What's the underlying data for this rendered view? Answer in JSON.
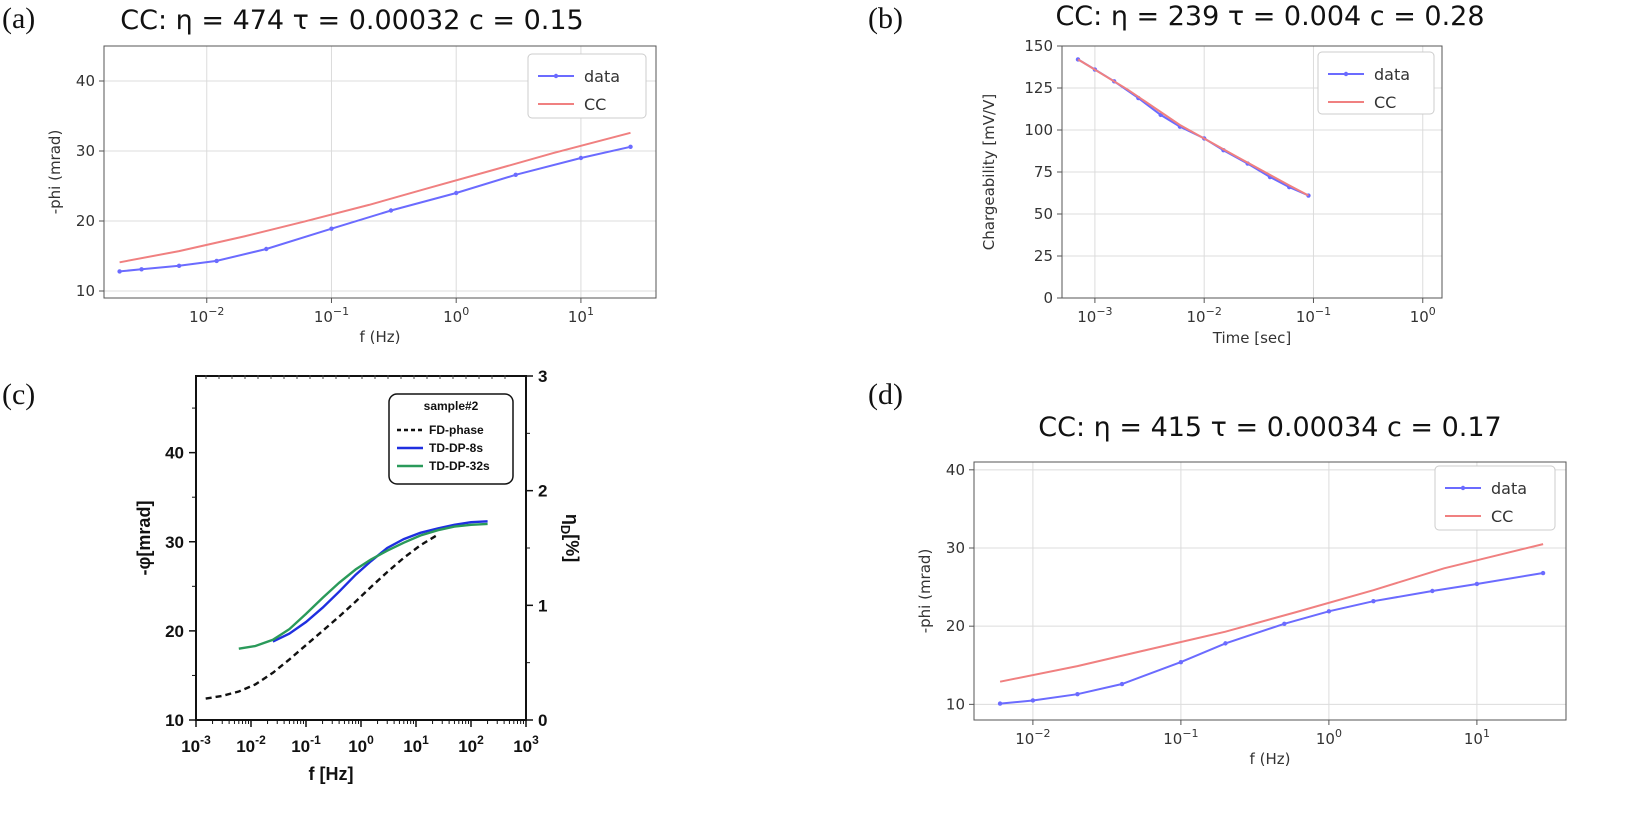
{
  "colors": {
    "data": "#6b6bff",
    "cc": "#f08080",
    "td8": "#1f2fe0",
    "td32": "#2a9a5a",
    "fd": "#111111"
  },
  "chart_data": [
    {
      "panel_label": "(a)",
      "type": "line",
      "title": "CC: η = 474 τ = 0.00032 c = 0.15",
      "xlabel": "f (Hz)",
      "ylabel": "-phi (mrad)",
      "xscale": "log",
      "xlim": [
        0.0015,
        40
      ],
      "ylim": [
        9,
        45
      ],
      "xticks": [
        {
          "v": 0.01,
          "b": "10",
          "e": "−2"
        },
        {
          "v": 0.1,
          "b": "10",
          "e": "−1"
        },
        {
          "v": 1,
          "b": "10",
          "e": "0"
        },
        {
          "v": 10,
          "b": "10",
          "e": "1"
        }
      ],
      "yticks": [
        10,
        20,
        30,
        40
      ],
      "legend": [
        "data",
        "CC"
      ],
      "legend_loc": "top-right",
      "grid": true,
      "series": [
        {
          "name": "data",
          "style": "line-marker",
          "x": [
            0.002,
            0.003,
            0.006,
            0.012,
            0.03,
            0.1,
            0.3,
            1,
            3,
            10,
            25
          ],
          "y": [
            12.8,
            13.1,
            13.6,
            14.3,
            16.0,
            18.9,
            21.5,
            24.0,
            26.6,
            29.0,
            30.6
          ]
        },
        {
          "name": "CC",
          "style": "line",
          "x": [
            0.002,
            0.006,
            0.02,
            0.06,
            0.2,
            0.6,
            2,
            6,
            25
          ],
          "y": [
            14.1,
            15.7,
            17.8,
            19.9,
            22.3,
            24.7,
            27.3,
            29.7,
            32.6
          ]
        }
      ]
    },
    {
      "panel_label": "(b)",
      "type": "line",
      "title": "CC: η = 239 τ = 0.004 c = 0.28",
      "xlabel": "Time [sec]",
      "ylabel": "Chargeability [mV/V]",
      "xscale": "log",
      "xlim": [
        0.0005,
        1.5
      ],
      "ylim": [
        0,
        150
      ],
      "xticks": [
        {
          "v": 0.001,
          "b": "10",
          "e": "−3"
        },
        {
          "v": 0.01,
          "b": "10",
          "e": "−2"
        },
        {
          "v": 0.1,
          "b": "10",
          "e": "−1"
        },
        {
          "v": 1,
          "b": "10",
          "e": "0"
        }
      ],
      "yticks": [
        0,
        25,
        50,
        75,
        100,
        125,
        150
      ],
      "legend": [
        "data",
        "CC"
      ],
      "legend_loc": "top-right",
      "grid": true,
      "series": [
        {
          "name": "data",
          "style": "line-marker",
          "x": [
            0.0007,
            0.001,
            0.0015,
            0.0025,
            0.004,
            0.006,
            0.01,
            0.015,
            0.025,
            0.04,
            0.06,
            0.09
          ],
          "y": [
            142,
            136,
            129,
            119,
            109,
            102,
            95,
            88,
            80,
            72,
            66,
            61
          ]
        },
        {
          "name": "CC",
          "style": "line",
          "x": [
            0.0007,
            0.002,
            0.006,
            0.02,
            0.06,
            0.09
          ],
          "y": [
            142,
            124,
            103,
            84,
            67,
            61
          ]
        }
      ]
    },
    {
      "panel_label": "(c)",
      "type": "line",
      "title": "",
      "xlabel": "f [Hz]",
      "ylabel": "-φ[mrad]",
      "y2label_main": "η",
      "y2label_sub": "D",
      "y2label_tail": "[%]",
      "xscale": "log",
      "xlim": [
        0.001,
        1000
      ],
      "ylim": [
        10,
        48.6
      ],
      "y2lim": [
        0,
        3
      ],
      "xticks": [
        {
          "v": 0.001,
          "b": "10",
          "e": "-3"
        },
        {
          "v": 0.01,
          "b": "10",
          "e": "-2"
        },
        {
          "v": 0.1,
          "b": "10",
          "e": "-1"
        },
        {
          "v": 1,
          "b": "10",
          "e": "0"
        },
        {
          "v": 10,
          "b": "10",
          "e": "1"
        },
        {
          "v": 100,
          "b": "10",
          "e": "2"
        },
        {
          "v": 1000,
          "b": "10",
          "e": "3"
        }
      ],
      "yticks": [
        10,
        20,
        30,
        40
      ],
      "y2ticks": [
        0,
        1,
        2,
        3
      ],
      "legend_title": "sample#2",
      "legend": [
        "FD-phase",
        "TD-DP-8s",
        "TD-DP-32s"
      ],
      "legend_loc": "top-right",
      "grid": false,
      "series": [
        {
          "name": "FD-phase",
          "style": "dashed",
          "x": [
            0.0015,
            0.003,
            0.006,
            0.012,
            0.025,
            0.05,
            0.1,
            0.2,
            0.4,
            0.8,
            1.5,
            3,
            6,
            12,
            25
          ],
          "y": [
            12.4,
            12.7,
            13.2,
            14.0,
            15.3,
            16.8,
            18.4,
            20.0,
            21.6,
            23.3,
            24.9,
            26.6,
            28.2,
            29.6,
            30.8
          ]
        },
        {
          "name": "TD-DP-8s",
          "style": "line",
          "x": [
            0.025,
            0.05,
            0.1,
            0.2,
            0.4,
            0.8,
            1.5,
            3,
            6,
            12,
            25,
            50,
            100,
            200
          ],
          "y": [
            18.8,
            19.7,
            21.0,
            22.6,
            24.4,
            26.3,
            27.8,
            29.3,
            30.3,
            31.0,
            31.5,
            31.9,
            32.2,
            32.3
          ]
        },
        {
          "name": "TD-DP-32s",
          "style": "line",
          "x": [
            0.006,
            0.012,
            0.025,
            0.05,
            0.1,
            0.2,
            0.4,
            0.8,
            1.5,
            3,
            6,
            12,
            25,
            50,
            100,
            200
          ],
          "y": [
            18.0,
            18.3,
            19.0,
            20.2,
            21.9,
            23.7,
            25.4,
            26.9,
            28.0,
            29.0,
            29.9,
            30.7,
            31.3,
            31.7,
            31.9,
            32.0
          ]
        }
      ]
    },
    {
      "panel_label": "(d)",
      "type": "line",
      "title": "CC: η = 415 τ = 0.00034 c = 0.17",
      "xlabel": "f (Hz)",
      "ylabel": "-phi (mrad)",
      "xscale": "log",
      "xlim": [
        0.004,
        40
      ],
      "ylim": [
        8,
        41
      ],
      "xticks": [
        {
          "v": 0.01,
          "b": "10",
          "e": "−2"
        },
        {
          "v": 0.1,
          "b": "10",
          "e": "−1"
        },
        {
          "v": 1,
          "b": "10",
          "e": "0"
        },
        {
          "v": 10,
          "b": "10",
          "e": "1"
        }
      ],
      "yticks": [
        10,
        20,
        30,
        40
      ],
      "legend": [
        "data",
        "CC"
      ],
      "legend_loc": "top-right",
      "grid": true,
      "series": [
        {
          "name": "data",
          "style": "line-marker",
          "x": [
            0.006,
            0.01,
            0.02,
            0.04,
            0.1,
            0.2,
            0.5,
            1,
            2,
            5,
            10,
            28
          ],
          "y": [
            10.1,
            10.5,
            11.3,
            12.6,
            15.4,
            17.8,
            20.3,
            21.9,
            23.2,
            24.5,
            25.4,
            26.8
          ]
        },
        {
          "name": "CC",
          "style": "line",
          "x": [
            0.006,
            0.02,
            0.06,
            0.2,
            0.6,
            2,
            6,
            28
          ],
          "y": [
            12.9,
            14.9,
            17.0,
            19.3,
            21.8,
            24.6,
            27.4,
            30.5
          ]
        }
      ]
    }
  ]
}
